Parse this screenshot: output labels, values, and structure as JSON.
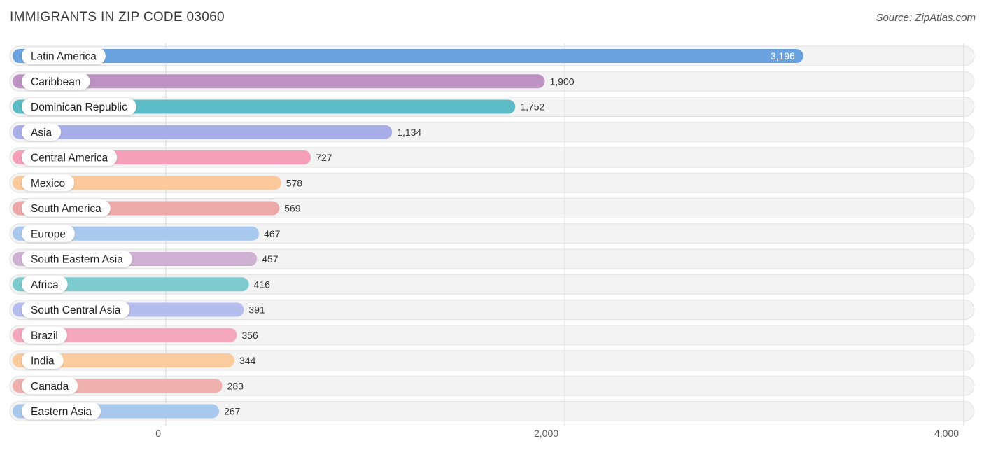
{
  "header": {
    "title": "IMMIGRANTS IN ZIP CODE 03060",
    "source": "Source: ZipAtlas.com"
  },
  "chart_data": {
    "type": "bar",
    "orientation": "horizontal",
    "title": "IMMIGRANTS IN ZIP CODE 03060",
    "categories": [
      "Latin America",
      "Caribbean",
      "Dominican Republic",
      "Asia",
      "Central America",
      "Mexico",
      "South America",
      "Europe",
      "South Eastern Asia",
      "Africa",
      "South Central Asia",
      "Brazil",
      "India",
      "Canada",
      "Eastern Asia"
    ],
    "values": [
      3196,
      1900,
      1752,
      1134,
      727,
      578,
      569,
      467,
      457,
      416,
      391,
      356,
      344,
      283,
      267
    ],
    "value_labels": [
      "3,196",
      "1,900",
      "1,752",
      "1,134",
      "727",
      "578",
      "569",
      "467",
      "457",
      "416",
      "391",
      "356",
      "344",
      "283",
      "267"
    ],
    "colors": [
      "#6ba3e0",
      "#be93c4",
      "#5bbcc7",
      "#a8aee8",
      "#f59fba",
      "#fbc99c",
      "#eda8a8",
      "#a9c8ee",
      "#cfb1d3",
      "#7dcbce",
      "#b5bcee",
      "#f6a7c0",
      "#fccb9d",
      "#eeb1ae",
      "#a9c8ee"
    ],
    "xlim": [
      0,
      4000
    ],
    "xticks": [
      0,
      2000,
      4000
    ],
    "xtick_labels": [
      "0",
      "2,000",
      "4,000"
    ],
    "grid": true
  }
}
